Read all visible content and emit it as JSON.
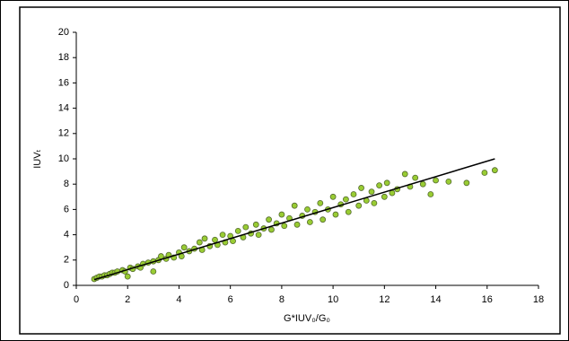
{
  "chart_data": {
    "type": "scatter",
    "x_label": "G*IUV₀/G₀",
    "y_label": "IUVₜ",
    "x": [
      0.7,
      0.8,
      0.9,
      1.0,
      1.1,
      1.2,
      1.3,
      1.4,
      1.5,
      1.6,
      1.8,
      1.9,
      2.0,
      2.1,
      2.2,
      2.4,
      2.5,
      2.6,
      2.8,
      3.0,
      3.0,
      3.2,
      3.3,
      3.5,
      3.6,
      3.8,
      4.0,
      4.1,
      4.2,
      4.4,
      4.6,
      4.8,
      4.9,
      5.0,
      5.2,
      5.4,
      5.5,
      5.7,
      5.8,
      6.0,
      6.1,
      6.3,
      6.5,
      6.6,
      6.8,
      7.0,
      7.1,
      7.3,
      7.5,
      7.6,
      7.8,
      8.0,
      8.1,
      8.3,
      8.5,
      8.6,
      8.8,
      9.0,
      9.1,
      9.3,
      9.5,
      9.6,
      9.8,
      10.0,
      10.1,
      10.3,
      10.5,
      10.6,
      10.8,
      11.0,
      11.1,
      11.3,
      11.5,
      11.6,
      11.8,
      12.0,
      12.1,
      12.3,
      12.5,
      12.8,
      13.0,
      13.2,
      13.5,
      13.8,
      14.0,
      14.5,
      15.2,
      15.9,
      16.3
    ],
    "values": [
      0.5,
      0.6,
      0.7,
      0.7,
      0.8,
      0.8,
      0.9,
      1.0,
      1.0,
      1.1,
      1.2,
      1.1,
      0.7,
      1.4,
      1.3,
      1.5,
      1.4,
      1.7,
      1.8,
      1.1,
      1.9,
      2.0,
      2.3,
      2.1,
      2.4,
      2.2,
      2.6,
      2.3,
      3.0,
      2.7,
      2.9,
      3.4,
      2.8,
      3.7,
      3.1,
      3.6,
      3.2,
      4.0,
      3.4,
      3.9,
      3.5,
      4.3,
      3.8,
      4.6,
      4.1,
      4.8,
      4.0,
      4.5,
      5.2,
      4.4,
      4.9,
      5.6,
      4.7,
      5.3,
      6.3,
      4.8,
      5.5,
      6.0,
      5.0,
      5.8,
      6.5,
      5.2,
      6.0,
      7.0,
      5.6,
      6.4,
      6.8,
      5.8,
      7.2,
      6.3,
      7.7,
      6.7,
      7.4,
      6.5,
      7.9,
      7.0,
      8.1,
      7.3,
      7.6,
      8.8,
      7.8,
      8.5,
      8.0,
      7.2,
      8.3,
      8.2,
      8.1,
      8.9,
      9.1
    ],
    "color": "#99cc33",
    "trendline": {
      "x": [
        0.7,
        16.3
      ],
      "values": [
        0.45,
        10.0
      ],
      "color": "#000000"
    },
    "xlim": [
      0,
      18
    ],
    "ylim": [
      0,
      20
    ],
    "xticks": [
      0,
      2,
      4,
      6,
      8,
      10,
      12,
      14,
      16,
      18
    ],
    "yticks": [
      0,
      2,
      4,
      6,
      8,
      10,
      12,
      14,
      16,
      18,
      20
    ],
    "grid": false
  }
}
